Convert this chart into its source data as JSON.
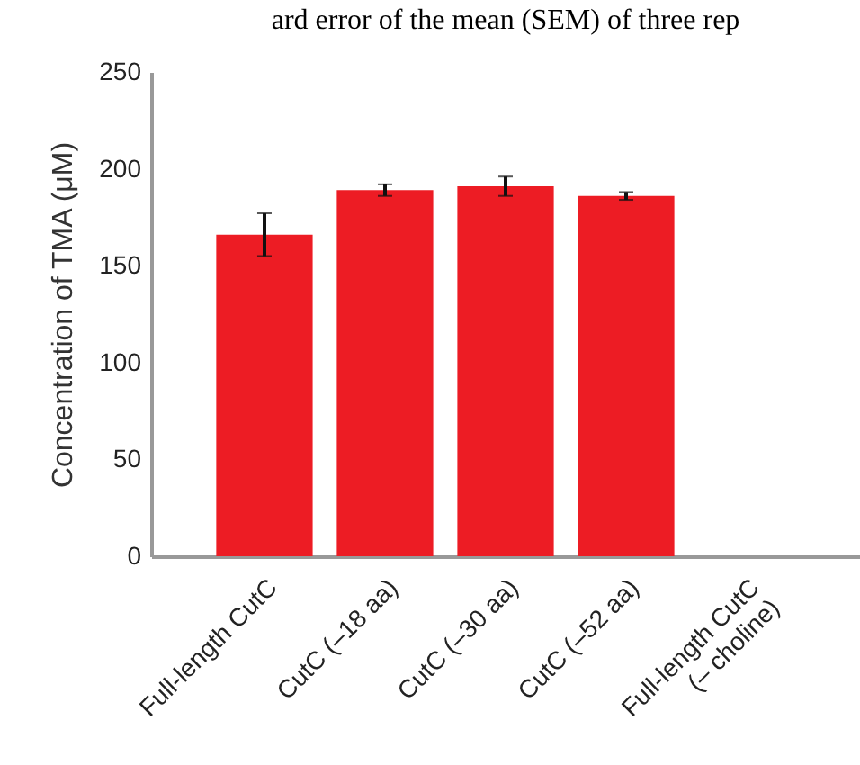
{
  "chart_data": {
    "type": "bar",
    "annotations": [
      "ard error of the mean (SEM) of three rep"
    ],
    "ylabel": "Concentration of TMA (μM)",
    "categories": [
      "Full-length CutC",
      "CutC (–18 aa)",
      "CutC (–30 aa)",
      "CutC (–52 aa)",
      "Full-length CutC\n(– choline)"
    ],
    "values": [
      166,
      189,
      191,
      186,
      0
    ],
    "errors": [
      11,
      3,
      5,
      2,
      null
    ],
    "color": "#ed1c24",
    "ylim": [
      0,
      250
    ],
    "yticks": [
      0,
      50,
      100,
      150,
      200,
      250
    ],
    "grid": false
  }
}
